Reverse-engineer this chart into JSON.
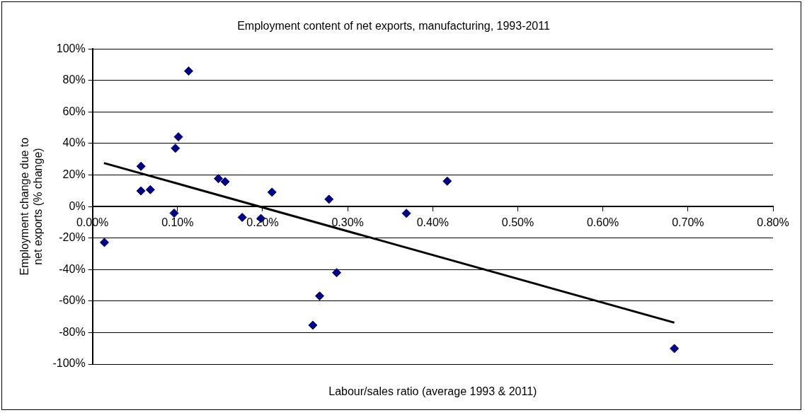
{
  "chart_data": {
    "type": "scatter",
    "title": "Employment content of net exports, manufacturing, 1993-2011",
    "xlabel": "Labour/sales ratio (average 1993 & 2011)",
    "ylabel": "Employment change due to net exports (% change)",
    "series": [
      {
        "type": "scatter",
        "color": "#000080",
        "marker": "diamond",
        "x": [
          0.014,
          0.057,
          0.057,
          0.068,
          0.096,
          0.0975,
          0.101,
          0.113,
          0.148,
          0.156,
          0.176,
          0.198,
          0.211,
          0.259,
          0.267,
          0.278,
          0.287,
          0.369,
          0.417,
          0.684
        ],
        "values": [
          -22.8,
          25.5,
          9.9,
          10.7,
          -4.2,
          37,
          44.2,
          86,
          17.7,
          15.8,
          -6.9,
          -7.6,
          9.1,
          -75.3,
          -56.8,
          4.6,
          -42,
          -4.3,
          16.1,
          -90.1
        ]
      },
      {
        "type": "line",
        "color": "#000000",
        "marker": "none",
        "line_style": "solid",
        "x": [
          0.0135,
          0.684
        ],
        "values": [
          27.6,
          -73.7
        ]
      }
    ],
    "xlim": [
      0,
      0.8
    ],
    "xticks": [
      {
        "value": 0,
        "label": "0.00%"
      },
      {
        "value": 0.1,
        "label": "0.10%"
      },
      {
        "value": 0.2,
        "label": "0.20%"
      },
      {
        "value": 0.3,
        "label": "0.30%"
      },
      {
        "value": 0.4,
        "label": "0.40%"
      },
      {
        "value": 0.5,
        "label": "0.50%"
      },
      {
        "value": 0.6,
        "label": "0.60%"
      },
      {
        "value": 0.7,
        "label": "0.70%"
      },
      {
        "value": 0.8,
        "label": "0.80%"
      }
    ],
    "ylim": [
      -100,
      100
    ],
    "yticks": [
      {
        "value": -100,
        "label": "-100%"
      },
      {
        "value": -80,
        "label": "-80%"
      },
      {
        "value": -60,
        "label": "-60%"
      },
      {
        "value": -40,
        "label": "-40%"
      },
      {
        "value": -20,
        "label": "-20%"
      },
      {
        "value": 0,
        "label": "0%"
      },
      {
        "value": 20,
        "label": "20%"
      },
      {
        "value": 40,
        "label": "40%"
      },
      {
        "value": 60,
        "label": "60%"
      },
      {
        "value": 80,
        "label": "80%"
      },
      {
        "value": 100,
        "label": "100%"
      }
    ],
    "grid": "y",
    "legend": false
  }
}
